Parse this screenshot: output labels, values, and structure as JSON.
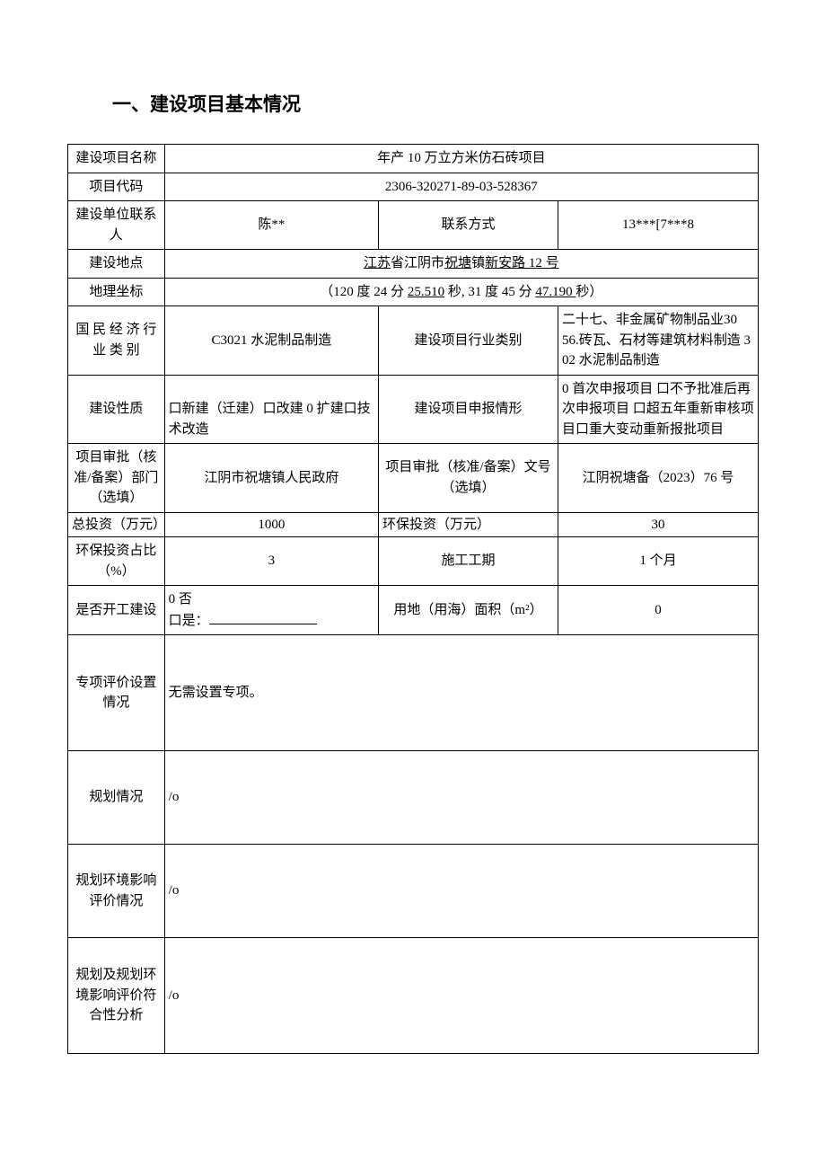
{
  "heading": "一、建设项目基本情况",
  "rows": {
    "projectName": {
      "label": "建设项目名称",
      "value": "年产 10 万立方米仿石砖项目"
    },
    "projectCode": {
      "label": "项目代码",
      "value": "2306-320271-89-03-528367"
    },
    "contactPerson": {
      "label": "建设单位联系人",
      "value": "陈**"
    },
    "contactMethod": {
      "label": "联系方式",
      "value": "13***[7***8"
    },
    "location": {
      "label": "建设地点",
      "value_html": "<span class='underline'>江苏</span>省江阴市<span class='underline'>祝塘</span>镇<span class='underline'>新安路 12 号</span>"
    },
    "coords": {
      "label": "地理坐标",
      "value_html": "（120 度 24 分 <span class='underline'>25.510</span> 秒, 31 度 45 分 <span class='underline'>47.190 </span>秒）"
    },
    "econCategory": {
      "label": "国 民 经 济 行业 类 别",
      "value": "C3021 水泥制品制造"
    },
    "industryCategory": {
      "label": "建设项目行业类别",
      "value": "二十七、非金属矿物制品业30　　56.砖瓦、石材等建筑材料制造 302 水泥制品制造"
    },
    "buildNature": {
      "label": "建设性质",
      "value": "口新建（迁建）口改建\n0 扩建口技术改造"
    },
    "reportSituation": {
      "label": "建设项目申报情形",
      "value": "0 首次申报项目\n口不予批准后再次申报项目\n口超五年重新审核项目口重大变动重新报批项目"
    },
    "approvalDept": {
      "label": "项目审批（核准/备案）部门（选填）",
      "value": "江阴市祝塘镇人民政府"
    },
    "approvalNo": {
      "label": "项目审批（核准/备案）文号（选填）",
      "value": "江阴祝塘备（2023）76 号"
    },
    "totalInvest": {
      "label": "总投资（万元）",
      "value": "1000"
    },
    "envInvest": {
      "label": "环保投资（万元）",
      "value": "30"
    },
    "envRatio": {
      "label": "环保投资占比（%）",
      "value": "3"
    },
    "duration": {
      "label": "施工工期",
      "value": "1 个月"
    },
    "started": {
      "label": "是否开工建设",
      "value_html": "0 否<br>口是：<span class='blank-line'></span>"
    },
    "landArea": {
      "label": "用地（用海）面积（m²）",
      "value": "0"
    },
    "specialEval": {
      "label": "专项评价设置情况",
      "value": "无需设置专项。"
    },
    "planning": {
      "label": "规划情况",
      "value": "/o"
    },
    "planningEnv": {
      "label": "规划环境影响评价情况",
      "value": "/o"
    },
    "conformance": {
      "label": "规划及规划环境影响评价符合性分析",
      "value": "/o"
    }
  }
}
